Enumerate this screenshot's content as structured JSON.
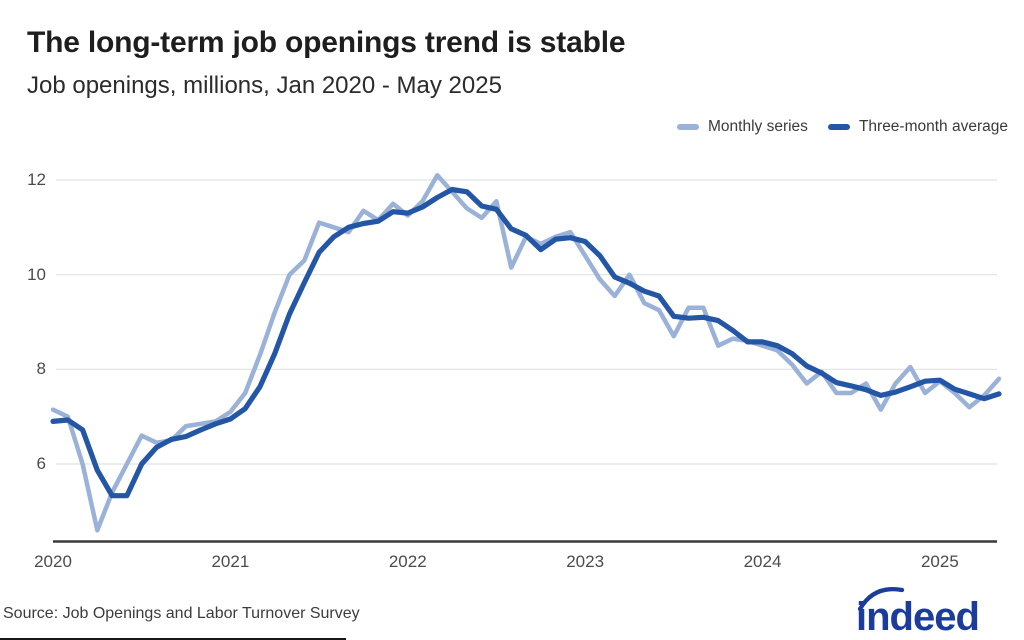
{
  "footer": {
    "source": "Source: Job Openings and Labor Turnover Survey",
    "logo_text": "indeed",
    "logo_color": "#1b3c9b"
  },
  "chart_data": {
    "type": "line",
    "title": "The long-term job openings trend is stable",
    "subtitle": "Job openings, millions, Jan 2020 - May 2025",
    "unit": "millions of job openings",
    "grid": "horizontal gridlines at 6, 8, 10, 12",
    "legend_position": "top-right",
    "x_tick_labels": [
      "2020",
      "2021",
      "2022",
      "2023",
      "2024",
      "2025"
    ],
    "y_ticks": [
      6,
      8,
      10,
      12
    ],
    "ylim": [
      4.37,
      12.45
    ],
    "x_range": [
      "Jan 2020",
      "May 2025"
    ],
    "months": [
      "Jan 2020",
      "Feb 2020",
      "Mar 2020",
      "Apr 2020",
      "May 2020",
      "Jun 2020",
      "Jul 2020",
      "Aug 2020",
      "Sep 2020",
      "Oct 2020",
      "Nov 2020",
      "Dec 2020",
      "Jan 2021",
      "Feb 2021",
      "Mar 2021",
      "Apr 2021",
      "May 2021",
      "Jun 2021",
      "Jul 2021",
      "Aug 2021",
      "Sep 2021",
      "Oct 2021",
      "Nov 2021",
      "Dec 2021",
      "Jan 2022",
      "Feb 2022",
      "Mar 2022",
      "Apr 2022",
      "May 2022",
      "Jun 2022",
      "Jul 2022",
      "Aug 2022",
      "Sep 2022",
      "Oct 2022",
      "Nov 2022",
      "Dec 2022",
      "Jan 2023",
      "Feb 2023",
      "Mar 2023",
      "Apr 2023",
      "May 2023",
      "Jun 2023",
      "Jul 2023",
      "Aug 2023",
      "Sep 2023",
      "Oct 2023",
      "Nov 2023",
      "Dec 2023",
      "Jan 2024",
      "Feb 2024",
      "Mar 2024",
      "Apr 2024",
      "May 2024",
      "Jun 2024",
      "Jul 2024",
      "Aug 2024",
      "Sep 2024",
      "Oct 2024",
      "Nov 2024",
      "Dec 2024",
      "Jan 2025",
      "Feb 2025",
      "Mar 2025",
      "Apr 2025",
      "May 2025"
    ],
    "series": [
      {
        "name": "Monthly series",
        "color": "#9ab1d8",
        "values": [
          7.15,
          7.0,
          6.0,
          4.6,
          5.4,
          6.0,
          6.6,
          6.45,
          6.5,
          6.8,
          6.85,
          6.9,
          7.1,
          7.5,
          8.3,
          9.2,
          10.0,
          10.3,
          11.1,
          11.0,
          10.9,
          11.35,
          11.15,
          11.5,
          11.25,
          11.55,
          12.1,
          11.75,
          11.4,
          11.2,
          11.55,
          10.15,
          10.8,
          10.65,
          10.8,
          10.9,
          10.4,
          9.9,
          9.55,
          10.0,
          9.4,
          9.25,
          8.7,
          9.3,
          9.3,
          8.5,
          8.65,
          8.6,
          8.5,
          8.4,
          8.1,
          7.7,
          7.95,
          7.5,
          7.5,
          7.7,
          7.15,
          7.7,
          8.05,
          7.5,
          7.75,
          7.5,
          7.2,
          7.45,
          7.8
        ]
      },
      {
        "name": "Three-month average",
        "color": "#2456a6",
        "values": [
          6.9,
          6.93,
          6.72,
          5.87,
          5.33,
          5.33,
          6.0,
          6.35,
          6.52,
          6.58,
          6.72,
          6.85,
          6.95,
          7.17,
          7.63,
          8.33,
          9.17,
          9.83,
          10.47,
          10.8,
          11.0,
          11.08,
          11.13,
          11.33,
          11.3,
          11.43,
          11.63,
          11.8,
          11.75,
          11.45,
          11.38,
          10.97,
          10.83,
          10.53,
          10.75,
          10.78,
          10.7,
          10.4,
          9.95,
          9.82,
          9.65,
          9.55,
          9.12,
          9.08,
          9.1,
          9.03,
          8.82,
          8.58,
          8.58,
          8.5,
          8.33,
          8.07,
          7.92,
          7.72,
          7.65,
          7.57,
          7.45,
          7.52,
          7.63,
          7.75,
          7.77,
          7.58,
          7.48,
          7.38,
          7.48
        ]
      }
    ]
  }
}
